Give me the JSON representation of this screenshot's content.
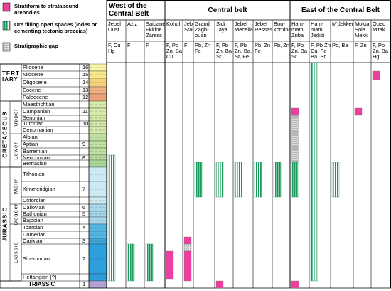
{
  "legend": [
    {
      "label": "Stratiform to stratabound orebodies"
    },
    {
      "label": "Ore filling open spaces (lodes or cementing tectonic breccias)"
    },
    {
      "label": "Stratigraphic gap"
    }
  ],
  "eras": [
    {
      "name": "TERT- IARY",
      "subs": []
    },
    {
      "name": "CRETACEOUS",
      "subs": [
        "Upper",
        "Lower"
      ]
    },
    {
      "name": "JURASSIC",
      "subs": [
        "Malm",
        "Dogger",
        "Liassic"
      ]
    }
  ],
  "stages": [
    {
      "name": "Pliocene",
      "number": "16"
    },
    {
      "name": "Miocene",
      "number": "15"
    },
    {
      "name": "Oligocene",
      "number": "14"
    },
    {
      "name": "Eocene",
      "number": "13"
    },
    {
      "name": "Paleocene",
      "number": "12"
    },
    {
      "name": "Maestrichtian"
    },
    {
      "name": "Campanian",
      "number": "11"
    },
    {
      "name": "Senonian"
    },
    {
      "name": "Turonian",
      "number": "10"
    },
    {
      "name": "Cenomanian"
    },
    {
      "name": "Albian"
    },
    {
      "name": "Aptian",
      "number": "9"
    },
    {
      "name": "Barremian"
    },
    {
      "name": "Neocomian",
      "number": "8"
    },
    {
      "name": "Berriasian"
    },
    {
      "name": "Tithonian"
    },
    {
      "name": "Kimmeridgian",
      "number": "7"
    },
    {
      "name": "Oxfordian"
    },
    {
      "name": "Callovian",
      "number": "6"
    },
    {
      "name": "Bathonian",
      "number": "5"
    },
    {
      "name": "Bajocian"
    },
    {
      "name": "Toarcian",
      "number": "4"
    },
    {
      "name": "Domerian"
    },
    {
      "name": "Carixian",
      "number": "3"
    },
    {
      "name": "Sinemurian",
      "number": "2"
    },
    {
      "name": "Hettangian (?)"
    },
    {
      "name": "TRIASSIC",
      "number": "1"
    }
  ],
  "regions": [
    {
      "name": "West of the Central Belt",
      "deposits": [
        {
          "name": "Jebel Oust",
          "metals": "F, Cu Hg"
        },
        {
          "name": "Aziz",
          "metals": "F"
        },
        {
          "name": "Saidane Fkirine Zaress",
          "metals": "F"
        }
      ]
    },
    {
      "name": "Central belt",
      "deposits": [
        {
          "name": "Kohol",
          "metals": "F, Pb Zn, Ba Cu"
        },
        {
          "name": "Jebel Stah",
          "metals": "F"
        },
        {
          "name": "Grand Zagh-ouan",
          "metals": "Pb, Zn Fe"
        },
        {
          "name": "Sidi Taya",
          "metals": "F, Pb Zn, Ba Sr"
        },
        {
          "name": "Jebel Mecella",
          "metals": "F, Pb Zn, Ba, Sr, Fe"
        },
        {
          "name": "Jebel Ressas",
          "metals": "Pb, Zn Fe"
        },
        {
          "name": "Bou-kornine",
          "metals": "Pb, Zn"
        }
      ]
    },
    {
      "name": "East of the Central Belt",
      "deposits": [
        {
          "name": "Ham-mam Zriba",
          "metals": "F, Pb Zn, Ba Sr"
        },
        {
          "name": "Ham-mam Jedidi",
          "metals": "F, Pb Zn Cu, Fe Ba, Sr"
        },
        {
          "name": "M'dekker",
          "metals": "Pb, Ba"
        },
        {
          "name": "Mokta Sola Mekki",
          "metals": "F, Zn"
        },
        {
          "name": "Oued M'tak",
          "metals": "F, Pb Zn, Ba Hg"
        }
      ]
    }
  ]
}
